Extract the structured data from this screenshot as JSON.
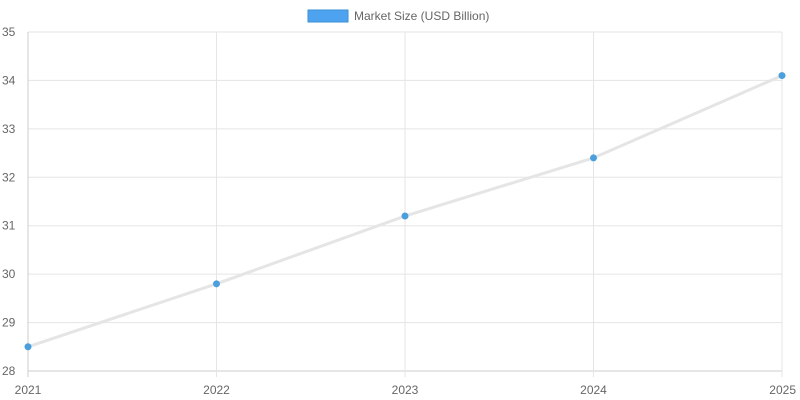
{
  "chart_data": {
    "type": "line",
    "title": "",
    "xlabel": "",
    "ylabel": "",
    "categories": [
      "2021",
      "2022",
      "2023",
      "2024",
      "2025"
    ],
    "series": [
      {
        "name": "Market Size (USD Billion)",
        "values": [
          28.5,
          29.8,
          31.2,
          32.4,
          34.1
        ]
      }
    ],
    "ylim": [
      28,
      35
    ],
    "y_ticks": [
      "28",
      "29",
      "30",
      "31",
      "32",
      "33",
      "34",
      "35"
    ],
    "grid": true,
    "legend_position": "top-center",
    "colors": {
      "point": "#4a9fdc",
      "line": "#e5e5e5",
      "legend_fill": "#4da3f0",
      "legend_border": "#3a8fd6",
      "grid": "#e5e5e5",
      "axis": "#cccccc",
      "text": "#666666"
    }
  }
}
